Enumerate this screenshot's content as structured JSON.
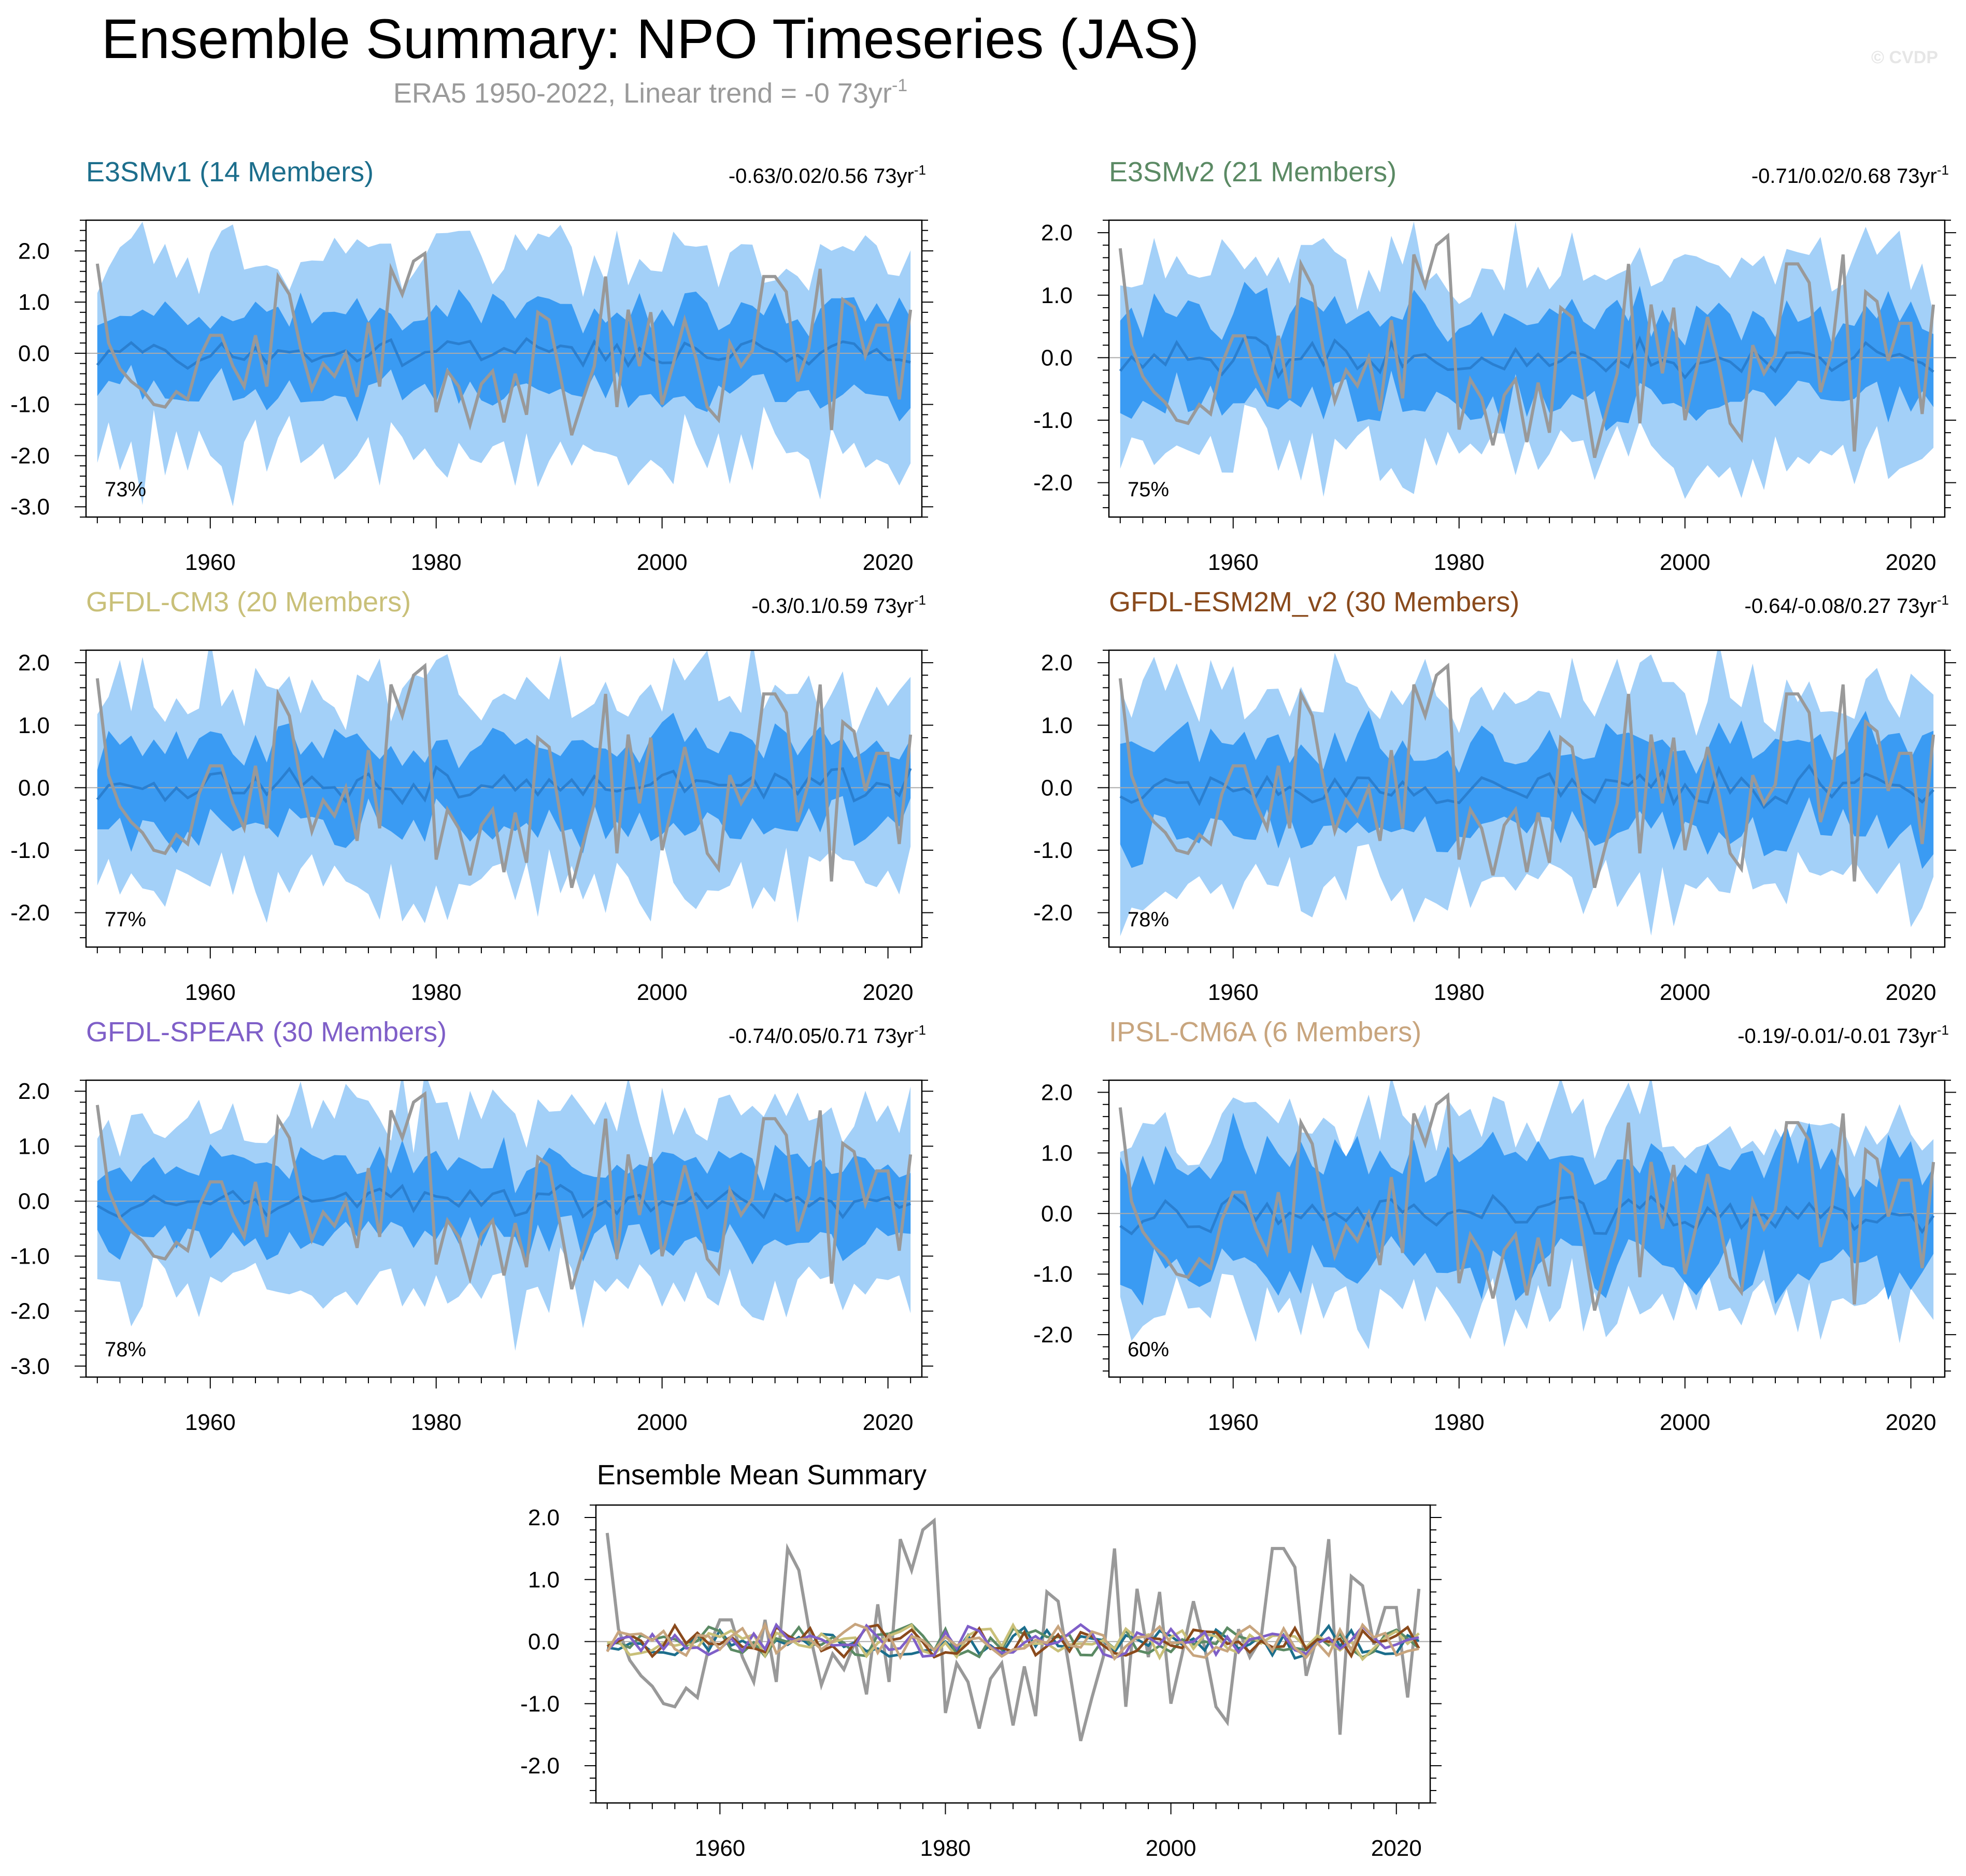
{
  "header": {
    "title": "Ensemble Summary: NPO Timeseries (JAS)",
    "subtitle": "ERA5 1950-2022, Linear trend = -0 73yr",
    "subtitle_sup": "-1",
    "watermark": "© CVDP"
  },
  "chart_data": [
    {
      "type": "area",
      "title": "E3SMv1 (14 Members)",
      "title_color": "#1c6e8c",
      "stats": "-0.63/0.02/0.56 73yr",
      "stats_sup": "-1",
      "pct_label": "73%",
      "ylim": [
        -3.2,
        2.6
      ],
      "yticks": [
        2.0,
        1.0,
        0.0,
        -1.0,
        -2.0,
        -3.0
      ],
      "ytick_labels": [
        "2.0",
        "1.0",
        "0.0",
        "-1.0",
        "-2.0",
        "-3.0"
      ],
      "xlim": [
        1949,
        2023
      ],
      "xticks": [
        1960,
        1980,
        2000,
        2020
      ],
      "xtick_labels": [
        "1960",
        "1980",
        "2000",
        "2020"
      ],
      "outer_spread": 2.0,
      "inner_spread": 0.85,
      "seed": 11
    },
    {
      "type": "area",
      "title": "E3SMv2 (21 Members)",
      "title_color": "#5b8a64",
      "stats": "-0.71/0.02/0.68 73yr",
      "stats_sup": "-1",
      "pct_label": "75%",
      "ylim": [
        -2.55,
        2.2
      ],
      "yticks": [
        2.0,
        1.0,
        0.0,
        -1.0,
        -2.0
      ],
      "ytick_labels": [
        "2.0",
        "1.0",
        "0.0",
        "-1.0",
        "-2.0"
      ],
      "xlim": [
        1949,
        2023
      ],
      "xticks": [
        1960,
        1980,
        2000,
        2020
      ],
      "xtick_labels": [
        "1960",
        "1980",
        "2000",
        "2020"
      ],
      "outer_spread": 1.55,
      "inner_spread": 0.75,
      "seed": 23
    },
    {
      "type": "area",
      "title": "GFDL-CM3 (20 Members)",
      "title_color": "#c9c079",
      "stats": "-0.3/0.1/0.59 73yr",
      "stats_sup": "-1",
      "pct_label": "77%",
      "ylim": [
        -2.55,
        2.2
      ],
      "yticks": [
        2.0,
        1.0,
        0.0,
        -1.0,
        -2.0
      ],
      "ytick_labels": [
        "2.0",
        "1.0",
        "0.0",
        "-1.0",
        "-2.0"
      ],
      "xlim": [
        1949,
        2023
      ],
      "xticks": [
        1960,
        1980,
        2000,
        2020
      ],
      "xtick_labels": [
        "1960",
        "1980",
        "2000",
        "2020"
      ],
      "outer_spread": 1.6,
      "inner_spread": 0.75,
      "seed": 37
    },
    {
      "type": "area",
      "title": "GFDL-ESM2M_v2 (30 Members)",
      "title_color": "#8a4a1c",
      "stats": "-0.64/-0.08/0.27 73yr",
      "stats_sup": "-1",
      "pct_label": "78%",
      "ylim": [
        -2.55,
        2.2
      ],
      "yticks": [
        2.0,
        1.0,
        0.0,
        -1.0,
        -2.0
      ],
      "ytick_labels": [
        "2.0",
        "1.0",
        "0.0",
        "-1.0",
        "-2.0"
      ],
      "xlim": [
        1949,
        2023
      ],
      "xticks": [
        1960,
        1980,
        2000,
        2020
      ],
      "xtick_labels": [
        "1960",
        "1980",
        "2000",
        "2020"
      ],
      "outer_spread": 1.6,
      "inner_spread": 0.75,
      "seed": 41
    },
    {
      "type": "area",
      "title": "GFDL-SPEAR (30 Members)",
      "title_color": "#7f5fc8",
      "stats": "-0.74/0.05/0.71 73yr",
      "stats_sup": "-1",
      "pct_label": "78%",
      "ylim": [
        -3.2,
        2.2
      ],
      "yticks": [
        2.0,
        1.0,
        0.0,
        -1.0,
        -2.0,
        -3.0
      ],
      "ytick_labels": [
        "2.0",
        "1.0",
        "0.0",
        "-1.0",
        "-2.0",
        "-3.0"
      ],
      "xlim": [
        1949,
        2023
      ],
      "xticks": [
        1960,
        1980,
        2000,
        2020
      ],
      "xtick_labels": [
        "1960",
        "1980",
        "2000",
        "2020"
      ],
      "outer_spread": 1.6,
      "inner_spread": 0.75,
      "seed": 53
    },
    {
      "type": "area",
      "title": "IPSL-CM6A (6 Members)",
      "title_color": "#c8a57e",
      "stats": "-0.19/-0.01/-0.01 73yr",
      "stats_sup": "-1",
      "pct_label": "60%",
      "ylim": [
        -2.7,
        2.2
      ],
      "yticks": [
        2.0,
        1.0,
        0.0,
        -1.0,
        -2.0
      ],
      "ytick_labels": [
        "2.0",
        "1.0",
        "0.0",
        "-1.0",
        "-2.0"
      ],
      "xlim": [
        1949,
        2023
      ],
      "xticks": [
        1960,
        1980,
        2000,
        2020
      ],
      "xtick_labels": [
        "1960",
        "1980",
        "2000",
        "2020"
      ],
      "outer_spread": 1.6,
      "inner_spread": 1.0,
      "seed": 67
    },
    {
      "type": "line",
      "title": "Ensemble Mean Summary",
      "ylim": [
        -2.6,
        2.2
      ],
      "yticks": [
        2.0,
        1.0,
        0.0,
        -1.0,
        -2.0
      ],
      "ytick_labels": [
        "2.0",
        "1.0",
        "0.0",
        "-1.0",
        "-2.0"
      ],
      "xlim": [
        1949,
        2023
      ],
      "xticks": [
        1960,
        1980,
        2000,
        2020
      ],
      "xtick_labels": [
        "1960",
        "1980",
        "2000",
        "2020"
      ],
      "series_colors": [
        "#1c6e8c",
        "#5b8a64",
        "#c9c079",
        "#8a4a1c",
        "#7f5fc8",
        "#c8a57e"
      ]
    }
  ],
  "observed": {
    "name": "ERA5",
    "years_start": 1950,
    "values": [
      1.75,
      0.2,
      -0.3,
      -0.55,
      -0.72,
      -1.0,
      -1.05,
      -0.75,
      -0.9,
      -0.1,
      0.35,
      0.35,
      -0.25,
      -0.65,
      0.35,
      -0.65,
      1.5,
      1.15,
      0.1,
      -0.7,
      -0.2,
      -0.45,
      0.0,
      -0.85,
      0.6,
      -0.65,
      1.65,
      1.15,
      1.8,
      1.95,
      -1.15,
      -0.35,
      -0.65,
      -1.4,
      -0.6,
      -0.35,
      -1.35,
      -0.4,
      -1.2,
      0.8,
      0.65,
      -0.45,
      -1.6,
      -0.9,
      -0.25,
      1.5,
      -1.05,
      0.85,
      -0.25,
      0.8,
      -1.0,
      -0.2,
      0.65,
      -0.1,
      -1.05,
      -1.3,
      0.2,
      -0.25,
      0.05,
      1.5,
      1.5,
      1.2,
      -0.55,
      0.1,
      1.65,
      -1.5,
      1.05,
      0.9,
      -0.05,
      0.55,
      0.55,
      -0.9,
      0.85
    ]
  },
  "colors": {
    "outer_band": "#a3d0f8",
    "inner_band": "#3a9bf3",
    "ens_mean": "#2a7fd0",
    "obs_line": "#999999",
    "zero_line": "#aaaaaa"
  }
}
